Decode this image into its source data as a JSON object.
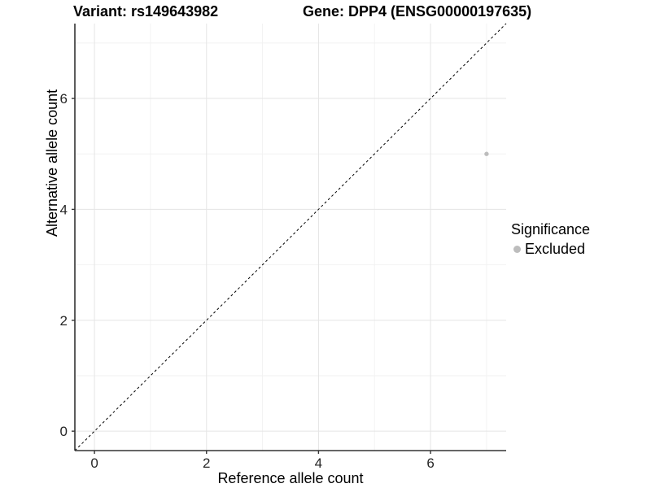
{
  "titles": {
    "variant": "Variant: rs149643982",
    "gene": "Gene: DPP4 (ENSG00000197635)"
  },
  "chart_data": {
    "type": "scatter",
    "title_left": "Variant: rs149643982",
    "title_right": "Gene: DPP4 (ENSG00000197635)",
    "xlabel": "Reference allele count",
    "ylabel": "Alternative allele count",
    "xlim": [
      -0.35,
      7.35
    ],
    "ylim": [
      -0.35,
      7.35
    ],
    "x_ticks": [
      0,
      2,
      4,
      6
    ],
    "y_ticks": [
      0,
      2,
      4,
      6
    ],
    "x_minor_gridlines": [
      1,
      3,
      5,
      7
    ],
    "y_minor_gridlines": [
      1,
      3,
      5,
      7
    ],
    "grid": true,
    "legend_position": "right",
    "identity_line": {
      "style": "dashed",
      "color": "#000000",
      "x1": -0.35,
      "y1": -0.35,
      "x2": 7.35,
      "y2": 7.35
    },
    "series": [
      {
        "name": "Excluded",
        "color": "#bdbdbd",
        "points": [
          {
            "x": 7,
            "y": 5
          }
        ]
      }
    ]
  },
  "legend": {
    "title": "Significance",
    "items": [
      {
        "label": "Excluded",
        "color": "#bdbdbd"
      }
    ]
  },
  "colors": {
    "background": "#ffffff",
    "axis_line": "#333333",
    "tick_text": "#262626",
    "grid_major": "#e5e5e5",
    "grid_minor": "#f2f2f2",
    "point": "#bdbdbd"
  }
}
